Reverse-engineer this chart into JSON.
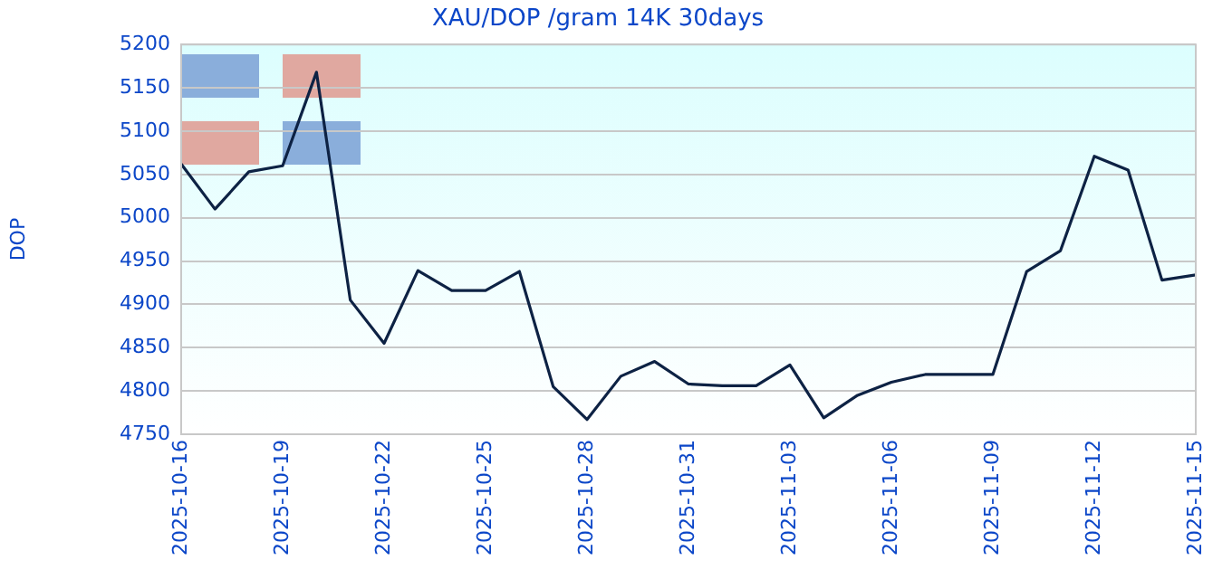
{
  "chart_data": {
    "type": "line",
    "title": "XAU/DOP /gram 14K 30days",
    "ylabel": "DOP",
    "x": [
      "2025-10-16",
      "2025-10-17",
      "2025-10-18",
      "2025-10-19",
      "2025-10-20",
      "2025-10-21",
      "2025-10-22",
      "2025-10-23",
      "2025-10-24",
      "2025-10-25",
      "2025-10-26",
      "2025-10-27",
      "2025-10-28",
      "2025-10-29",
      "2025-10-30",
      "2025-10-31",
      "2025-11-01",
      "2025-11-02",
      "2025-11-03",
      "2025-11-04",
      "2025-11-05",
      "2025-11-06",
      "2025-11-07",
      "2025-11-08",
      "2025-11-09",
      "2025-11-10",
      "2025-11-11",
      "2025-11-12",
      "2025-11-13",
      "2025-11-14",
      "2025-11-15"
    ],
    "series": [
      {
        "color": "#0d2244",
        "values": [
          5062,
          5010,
          5053,
          5060,
          5168,
          4905,
          4855,
          4939,
          4916,
          4916,
          4938,
          4805,
          4767,
          4817,
          4834,
          4808,
          4806,
          4806,
          4830,
          4769,
          4795,
          4810,
          4819,
          4819,
          4819,
          4938,
          4962,
          5071,
          5055,
          4928,
          4934
        ]
      }
    ],
    "xlim": [
      "2025-10-16",
      "2025-11-15"
    ],
    "xticks": [
      "2025-10-16",
      "2025-10-19",
      "2025-10-22",
      "2025-10-25",
      "2025-10-28",
      "2025-10-31",
      "2025-11-03",
      "2025-11-06",
      "2025-11-09",
      "2025-11-12",
      "2025-11-15"
    ],
    "ylim": [
      4750,
      5200
    ],
    "yticks": [
      4750,
      4800,
      4850,
      4900,
      4950,
      5000,
      5050,
      5100,
      5150,
      5200
    ],
    "grid": "y",
    "legend": false,
    "marker": "none",
    "line_style": "solid"
  }
}
